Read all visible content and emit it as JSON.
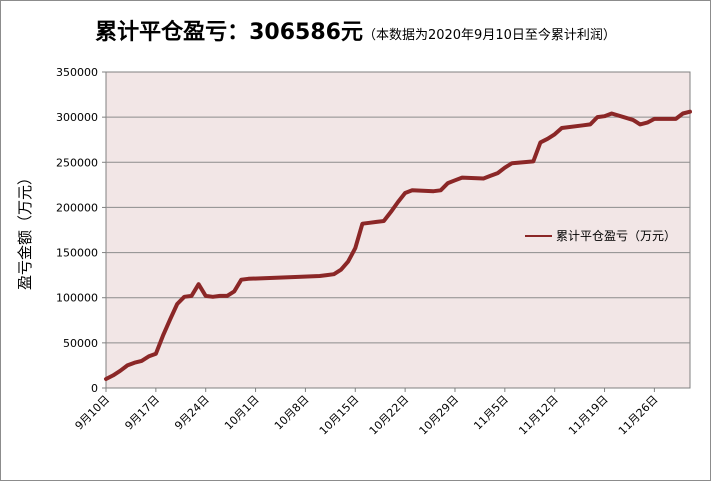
{
  "title": {
    "main": "累计平仓盈亏：306586元",
    "sub": "（本数据为2020年9月10日至今累计利润）"
  },
  "chart_data": {
    "type": "line",
    "ylabel": "盈亏金额（万元）",
    "ylim": [
      0,
      350000
    ],
    "yticks": [
      0,
      50000,
      100000,
      150000,
      200000,
      250000,
      300000,
      350000
    ],
    "ytick_labels": [
      "0",
      "50000",
      "100000",
      "150000",
      "200000",
      "250000",
      "300000",
      "350000"
    ],
    "xlim": [
      "2020-09-10",
      "2020-12-01"
    ],
    "xtick_labels": [
      "9月10日",
      "9月17日",
      "9月24日",
      "10月1日",
      "10月8日",
      "10月15日",
      "10月22日",
      "10月29日",
      "11月5日",
      "11月12日",
      "11月19日",
      "11月26日"
    ],
    "xtick_dates": [
      "2020-09-10",
      "2020-09-17",
      "2020-09-24",
      "2020-10-01",
      "2020-10-08",
      "2020-10-15",
      "2020-10-22",
      "2020-10-29",
      "2020-11-05",
      "2020-11-12",
      "2020-11-19",
      "2020-11-26"
    ],
    "grid": true,
    "legend_position": "right",
    "plot_background": "#f2e6e6",
    "series": [
      {
        "name": "累计平仓盈亏（万元）",
        "color": "#8b2727",
        "points": [
          [
            "2020-09-10",
            10000
          ],
          [
            "2020-09-11",
            14000
          ],
          [
            "2020-09-12",
            19000
          ],
          [
            "2020-09-13",
            25000
          ],
          [
            "2020-09-14",
            28000
          ],
          [
            "2020-09-15",
            30000
          ],
          [
            "2020-09-16",
            35000
          ],
          [
            "2020-09-17",
            38000
          ],
          [
            "2020-09-18",
            58000
          ],
          [
            "2020-09-19",
            76000
          ],
          [
            "2020-09-20",
            93000
          ],
          [
            "2020-09-21",
            101000
          ],
          [
            "2020-09-22",
            102000
          ],
          [
            "2020-09-23",
            115000
          ],
          [
            "2020-09-24",
            102000
          ],
          [
            "2020-09-25",
            101000
          ],
          [
            "2020-09-26",
            102000
          ],
          [
            "2020-09-27",
            102000
          ],
          [
            "2020-09-28",
            107000
          ],
          [
            "2020-09-29",
            120000
          ],
          [
            "2020-09-30",
            121000
          ],
          [
            "2020-10-07",
            123000
          ],
          [
            "2020-10-10",
            124000
          ],
          [
            "2020-10-11",
            125000
          ],
          [
            "2020-10-12",
            126000
          ],
          [
            "2020-10-13",
            131000
          ],
          [
            "2020-10-14",
            140000
          ],
          [
            "2020-10-15",
            155000
          ],
          [
            "2020-10-16",
            182000
          ],
          [
            "2020-10-17",
            183000
          ],
          [
            "2020-10-18",
            184000
          ],
          [
            "2020-10-19",
            185000
          ],
          [
            "2020-10-20",
            195000
          ],
          [
            "2020-10-21",
            206000
          ],
          [
            "2020-10-22",
            216000
          ],
          [
            "2020-10-23",
            219000
          ],
          [
            "2020-10-26",
            218000
          ],
          [
            "2020-10-27",
            219000
          ],
          [
            "2020-10-28",
            227000
          ],
          [
            "2020-10-29",
            230000
          ],
          [
            "2020-10-30",
            233000
          ],
          [
            "2020-11-02",
            232000
          ],
          [
            "2020-11-03",
            235000
          ],
          [
            "2020-11-04",
            238000
          ],
          [
            "2020-11-05",
            244000
          ],
          [
            "2020-11-06",
            249000
          ],
          [
            "2020-11-09",
            251000
          ],
          [
            "2020-11-10",
            272000
          ],
          [
            "2020-11-11",
            276000
          ],
          [
            "2020-11-12",
            281000
          ],
          [
            "2020-11-13",
            288000
          ],
          [
            "2020-11-16",
            291000
          ],
          [
            "2020-11-17",
            292000
          ],
          [
            "2020-11-18",
            300000
          ],
          [
            "2020-11-19",
            301000
          ],
          [
            "2020-11-20",
            304000
          ],
          [
            "2020-11-23",
            297000
          ],
          [
            "2020-11-24",
            292000
          ],
          [
            "2020-11-25",
            294000
          ],
          [
            "2020-11-26",
            298000
          ],
          [
            "2020-11-27",
            298000
          ],
          [
            "2020-11-29",
            298000
          ],
          [
            "2020-11-30",
            304000
          ],
          [
            "2020-12-01",
            306000
          ]
        ]
      }
    ]
  }
}
